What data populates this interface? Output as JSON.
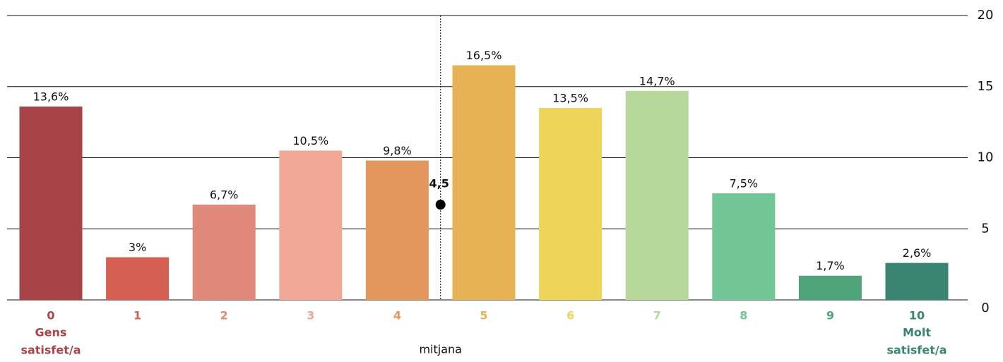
{
  "chart_data": {
    "type": "bar",
    "categories": [
      "0",
      "1",
      "2",
      "3",
      "4",
      "5",
      "6",
      "7",
      "8",
      "9",
      "10"
    ],
    "values": [
      13.6,
      3,
      6.7,
      10.5,
      9.8,
      16.5,
      13.5,
      14.7,
      7.5,
      1.7,
      2.6
    ],
    "value_labels": [
      "13,6%",
      "3%",
      "6,7%",
      "10,5%",
      "9,8%",
      "16,5%",
      "13,5%",
      "14,7%",
      "7,5%",
      "1,7%",
      "2,6%"
    ],
    "colors": [
      "#a84447",
      "#d55f53",
      "#e0887a",
      "#f1a896",
      "#e4975c",
      "#e6b253",
      "#edd55a",
      "#b6d89a",
      "#72c594",
      "#4fa47a",
      "#3a8572"
    ],
    "ylim": [
      0,
      20
    ],
    "yticks": [
      0,
      5,
      10,
      15,
      20
    ],
    "grid": true,
    "y_axis_side": "right",
    "low_label": [
      "Gens",
      "satisfet/a"
    ],
    "high_label": [
      "Molt",
      "satisfet/a"
    ],
    "mean": {
      "value": 4.5,
      "label": "4,5",
      "name": "mitjana"
    }
  }
}
